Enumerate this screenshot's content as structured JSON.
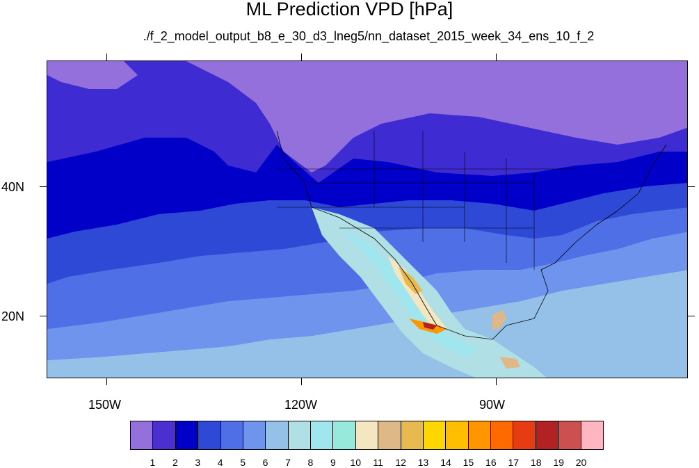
{
  "title": "ML Prediction VPD [hPa]",
  "subtitle": "./f_2_model_output_b8_e_30_d3_lneg5/nn_dataset_2015_week_34_ens_10_f_2",
  "axes": {
    "lat_labels": [
      "40N",
      "20N"
    ],
    "lon_labels": [
      "150W",
      "120W",
      "90W"
    ]
  },
  "colorbar": {
    "colors": [
      "#9370db",
      "#4b2fcf",
      "#0000c8",
      "#2e49d6",
      "#4e6fe6",
      "#6f94ee",
      "#95c0e8",
      "#b0e0e6",
      "#a0e6ef",
      "#97eadb",
      "#f5e6c2",
      "#deb887",
      "#e8b94f",
      "#ffd700",
      "#ffbf00",
      "#ff9600",
      "#ff6a00",
      "#e63c14",
      "#b22222",
      "#cd5050",
      "#ffb6c1"
    ],
    "labels": [
      "1",
      "2",
      "3",
      "4",
      "5",
      "6",
      "7",
      "8",
      "9",
      "10",
      "11",
      "12",
      "13",
      "14",
      "15",
      "16",
      "17",
      "18",
      "19",
      "20"
    ]
  }
}
